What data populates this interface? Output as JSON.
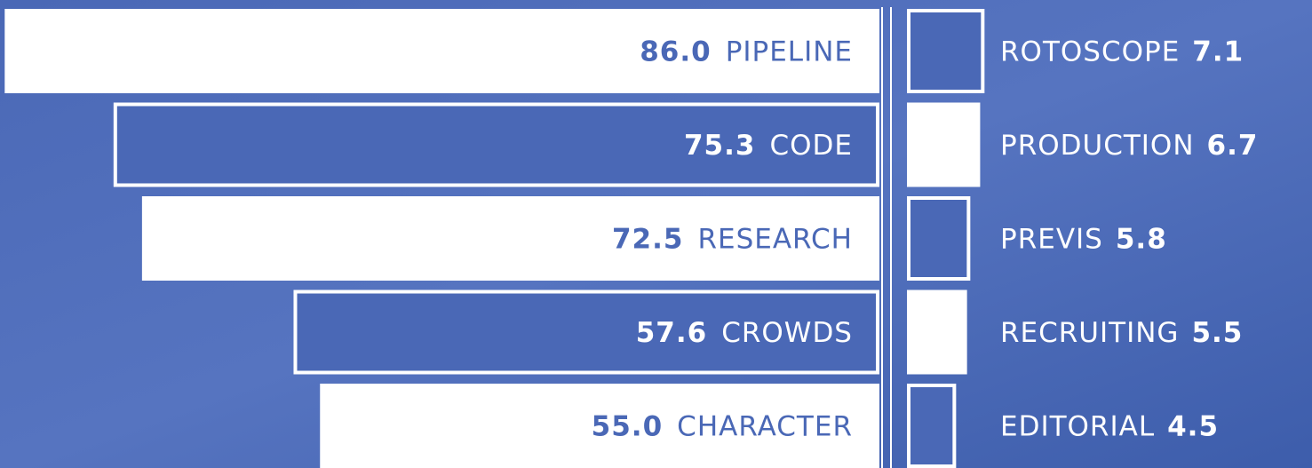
{
  "chart_data": [
    {
      "type": "bar",
      "categories": [
        "PIPELINE",
        "CODE",
        "RESEARCH",
        "CROWDS",
        "CHARACTER"
      ],
      "values": [
        86.0,
        75.3,
        72.5,
        57.6,
        55.0
      ],
      "value_labels": [
        "86.0",
        "75.3",
        "72.5",
        "57.6",
        "55.0"
      ],
      "color": "#ffffff"
    },
    {
      "type": "bar",
      "categories": [
        "ROTOSCOPE",
        "PRODUCTION",
        "PREVIS",
        "RECRUITING",
        "EDITORIAL"
      ],
      "values": [
        7.1,
        6.7,
        5.8,
        5.5,
        4.5
      ],
      "color": "#ffffff"
    }
  ]
}
